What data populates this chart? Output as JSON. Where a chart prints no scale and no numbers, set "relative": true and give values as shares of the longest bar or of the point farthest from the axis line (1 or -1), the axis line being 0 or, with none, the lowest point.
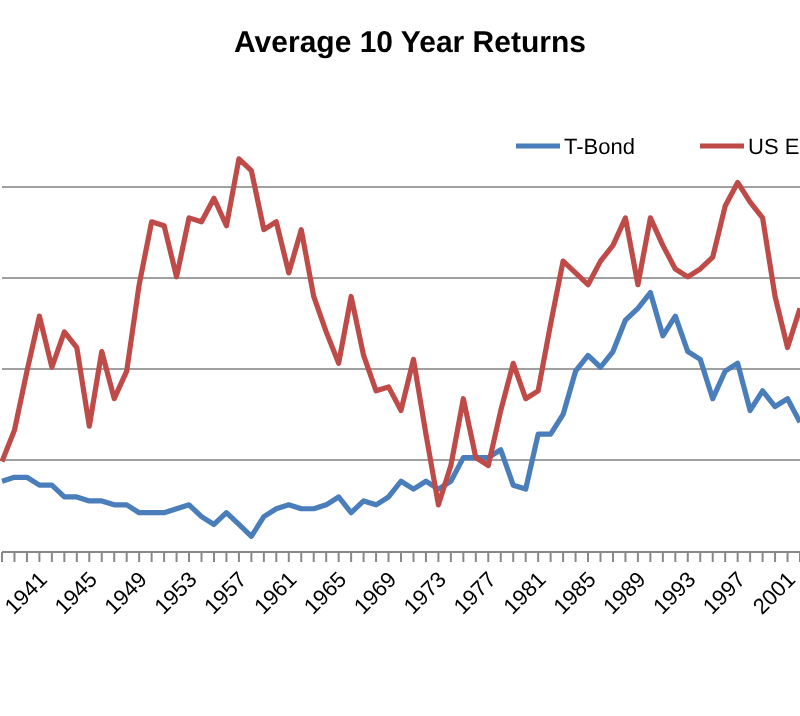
{
  "chart_data": {
    "type": "line",
    "title": "Average 10 Year Returns",
    "relative": true,
    "grid": "y",
    "legend": "top right",
    "marker": "none",
    "line_style": "solid",
    "categories": [
      null,
      null,
      "1941",
      null,
      null,
      null,
      "1945",
      null,
      null,
      null,
      "1949",
      null,
      null,
      null,
      "1953",
      null,
      null,
      null,
      "1957",
      null,
      null,
      null,
      "1961",
      null,
      null,
      null,
      "1965",
      null,
      null,
      null,
      "1969",
      null,
      null,
      null,
      "1973",
      null,
      null,
      null,
      "1977",
      null,
      null,
      null,
      "1981",
      null,
      null,
      null,
      "1985",
      null,
      null,
      null,
      "1989",
      null,
      null,
      null,
      "1993",
      null,
      null,
      null,
      "1997",
      null,
      null,
      null,
      "2001",
      null,
      null
    ],
    "series": [
      {
        "name": "T-Bond",
        "color": "#4a7ebb",
        "values": [
          0.18,
          0.19,
          0.19,
          0.17,
          0.17,
          0.14,
          0.14,
          0.13,
          0.13,
          0.12,
          0.12,
          0.1,
          0.1,
          0.1,
          0.11,
          0.12,
          0.09,
          0.07,
          0.1,
          0.07,
          0.04,
          0.09,
          0.11,
          0.12,
          0.11,
          0.11,
          0.12,
          0.14,
          0.1,
          0.13,
          0.12,
          0.14,
          0.18,
          0.16,
          0.18,
          0.16,
          0.18,
          0.24,
          0.24,
          0.24,
          0.26,
          0.17,
          0.16,
          0.3,
          0.3,
          0.35,
          0.46,
          0.5,
          0.47,
          0.51,
          0.59,
          0.62,
          0.66,
          0.55,
          0.6,
          0.51,
          0.49,
          0.39,
          0.46,
          0.48,
          0.36,
          0.41,
          0.37,
          0.39,
          0.33
        ]
      },
      {
        "name": "US E",
        "color": "#be4b48",
        "values": [
          0.23,
          0.31,
          0.46,
          0.6,
          0.47,
          0.56,
          0.52,
          0.32,
          0.51,
          0.39,
          0.46,
          0.68,
          0.84,
          0.83,
          0.7,
          0.85,
          0.84,
          0.9,
          0.83,
          1.0,
          0.97,
          0.82,
          0.84,
          0.71,
          0.82,
          0.65,
          0.56,
          0.48,
          0.65,
          0.5,
          0.41,
          0.42,
          0.36,
          0.49,
          0.3,
          0.12,
          0.22,
          0.39,
          0.24,
          0.22,
          0.36,
          0.48,
          0.39,
          0.41,
          0.58,
          0.74,
          0.71,
          0.68,
          0.74,
          0.78,
          0.85,
          0.68,
          0.85,
          0.78,
          0.72,
          0.7,
          0.72,
          0.75,
          0.88,
          0.94,
          0.89,
          0.85,
          0.65,
          0.52,
          0.62
        ]
      }
    ]
  }
}
